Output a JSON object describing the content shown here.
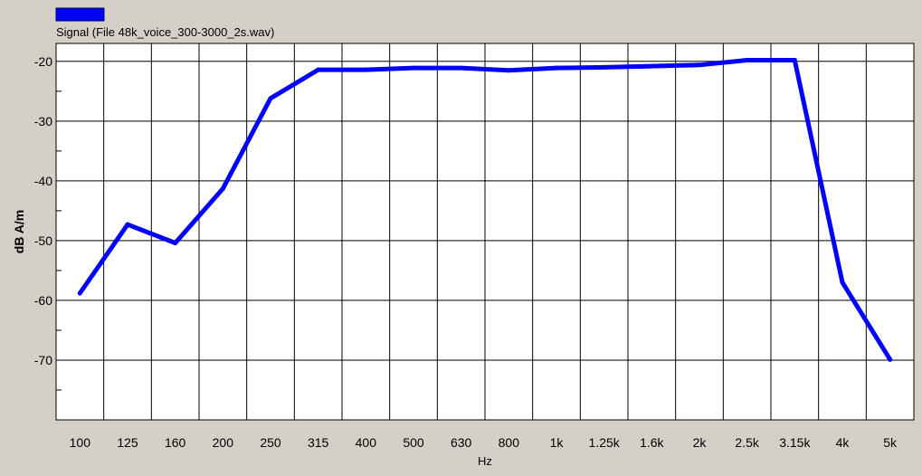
{
  "chart_data": {
    "type": "line",
    "legend": {
      "placement": "top-left",
      "entries": [
        {
          "label": "Signal (File 48k_voice_300-3000_2s.wav)",
          "color": "#0000ff"
        }
      ]
    },
    "xlabel": "Hz",
    "ylabel": "dB A/m",
    "ylim": [
      -80,
      -17
    ],
    "yticks": [
      -20,
      -30,
      -40,
      -50,
      -60,
      -70
    ],
    "grid": true,
    "categories": [
      "100",
      "125",
      "160",
      "200",
      "250",
      "315",
      "400",
      "500",
      "630",
      "800",
      "1k",
      "1.25k",
      "1.6k",
      "2k",
      "2.5k",
      "3.15k",
      "4k",
      "5k"
    ],
    "series": [
      {
        "color": "#0000ff",
        "values": [
          -58.8,
          -47.3,
          -50.4,
          -41.3,
          -26.2,
          -21.4,
          -21.4,
          -21.1,
          -21.1,
          -21.5,
          -21.1,
          -21.0,
          -20.8,
          -20.6,
          -19.8,
          -19.8,
          -57.0,
          -69.9
        ]
      }
    ]
  }
}
